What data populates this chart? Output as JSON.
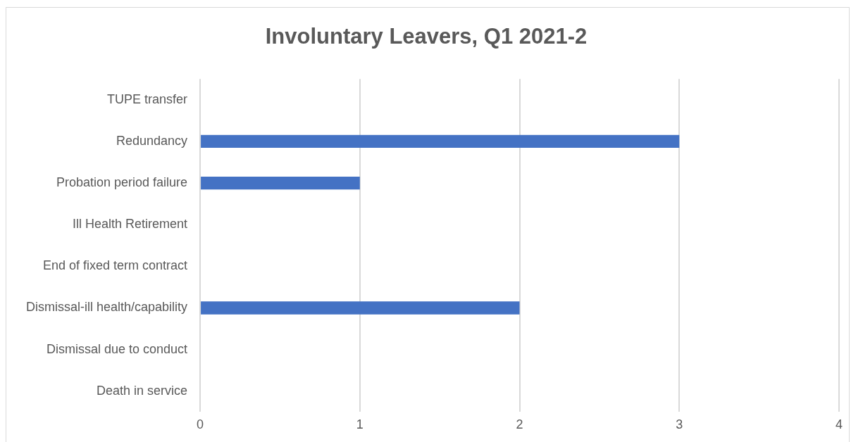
{
  "chart_data": {
    "type": "bar",
    "orientation": "horizontal",
    "title": "Involuntary Leavers, Q1 2021-2",
    "categories": [
      "TUPE transfer",
      "Redundancy",
      "Probation period failure",
      "Ill Health Retirement",
      "End of fixed term contract",
      "Dismissal-ill health/capability",
      "Dismissal due to conduct",
      "Death in service"
    ],
    "values": [
      0,
      3,
      1,
      0,
      0,
      2,
      0,
      0
    ],
    "color": "#4472c4",
    "xlim": [
      0,
      4
    ],
    "xticks": [
      0,
      1,
      2,
      3,
      4
    ],
    "grid": "x",
    "legend": false
  }
}
